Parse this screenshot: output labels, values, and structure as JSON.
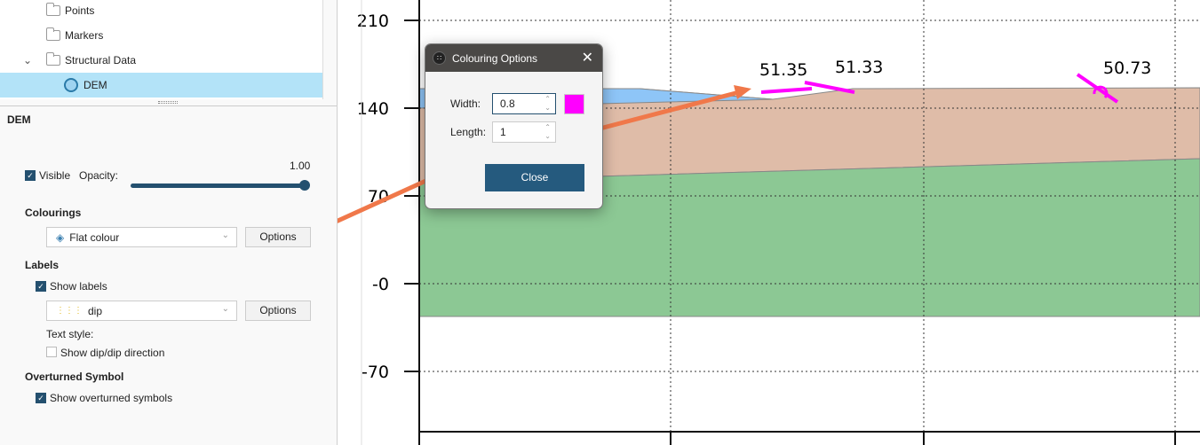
{
  "tree": {
    "items": [
      {
        "label": "Points"
      },
      {
        "label": "Markers"
      },
      {
        "label": "Structural Data"
      },
      {
        "label": "DEM"
      }
    ]
  },
  "props": {
    "title": "DEM",
    "visible_label": "Visible",
    "visible": true,
    "opacity_label": "Opacity:",
    "opacity_value": "1.00",
    "opacity": 1.0,
    "colourings_heading": "Colourings",
    "colouring_value": "Flat colour",
    "options_label": "Options",
    "labels_heading": "Labels",
    "show_labels": "Show labels",
    "show_labels_checked": true,
    "label_value": "dip",
    "label_options": "Options",
    "text_style": "Text style:",
    "show_dip": "Show dip/dip direction",
    "show_dip_checked": false,
    "overturned_heading": "Overturned Symbol",
    "show_overturned": "Show overturned symbols",
    "show_overturned_checked": true
  },
  "chart": {
    "y_ticks": [
      "210",
      "140",
      "70",
      "-0",
      "-70"
    ],
    "point_labels": [
      "51.35",
      "51.33",
      "50.73"
    ],
    "colors": {
      "blue": "#8ec5f7",
      "brown": "#dfbca8",
      "green": "#8cc894",
      "symbol": "#ff00ff",
      "arrow": "#f0784a"
    }
  },
  "dialog": {
    "title": "Colouring Options",
    "width_label": "Width:",
    "width_value": "0.8",
    "length_label": "Length:",
    "length_value": "1",
    "swatch_color": "#ff00ff",
    "close_label": "Close"
  }
}
